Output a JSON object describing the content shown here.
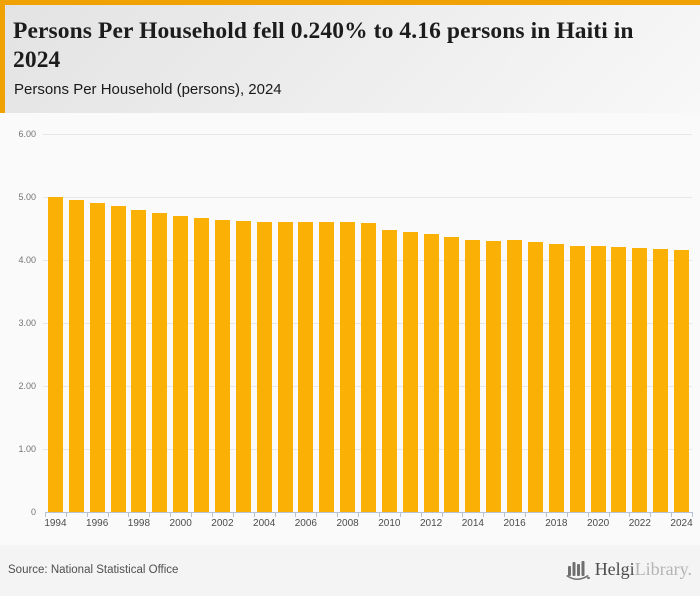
{
  "header": {
    "title": "Persons Per Household fell 0.240% to 4.16 persons in Haiti in 2024",
    "subtitle": "Persons Per Household (persons), 2024"
  },
  "footer": {
    "source": "Source: National Statistical Office",
    "logo_part1": "Helgi",
    "logo_part2": "Library."
  },
  "theme": {
    "accent_strip": "#F0A202",
    "bar_color": "#FAB005",
    "grid_color": "#e7e7e7",
    "axis_color": "#b7c1d4",
    "chart_bg": "#fafafa"
  },
  "chart_data": {
    "type": "bar",
    "title": "Persons Per Household fell 0.240% to 4.16 persons in Haiti in 2024",
    "subtitle": "Persons Per Household (persons), 2024",
    "xlabel": "",
    "ylabel": "",
    "ylim": [
      0,
      6
    ],
    "ytick_labels": [
      "6.00",
      "5.00",
      "4.00",
      "3.00",
      "2.00",
      "1.00",
      "0"
    ],
    "xtick_labels": [
      "1994",
      "1996",
      "1998",
      "2000",
      "2002",
      "2004",
      "2006",
      "2008",
      "2010",
      "2012",
      "2014",
      "2016",
      "2018",
      "2020",
      "2022",
      "2024"
    ],
    "grid": true,
    "legend": false,
    "categories": [
      1994,
      1995,
      1996,
      1997,
      1998,
      1999,
      2000,
      2001,
      2002,
      2003,
      2004,
      2005,
      2006,
      2007,
      2008,
      2009,
      2010,
      2011,
      2012,
      2013,
      2014,
      2015,
      2016,
      2017,
      2018,
      2019,
      2020,
      2021,
      2022,
      2023,
      2024
    ],
    "values": [
      5.0,
      4.96,
      4.9,
      4.85,
      4.8,
      4.75,
      4.7,
      4.67,
      4.64,
      4.62,
      4.61,
      4.6,
      4.6,
      4.6,
      4.6,
      4.59,
      4.47,
      4.44,
      4.41,
      4.37,
      4.31,
      4.3,
      4.31,
      4.28,
      4.26,
      4.23,
      4.22,
      4.2,
      4.19,
      4.17,
      4.16
    ]
  }
}
